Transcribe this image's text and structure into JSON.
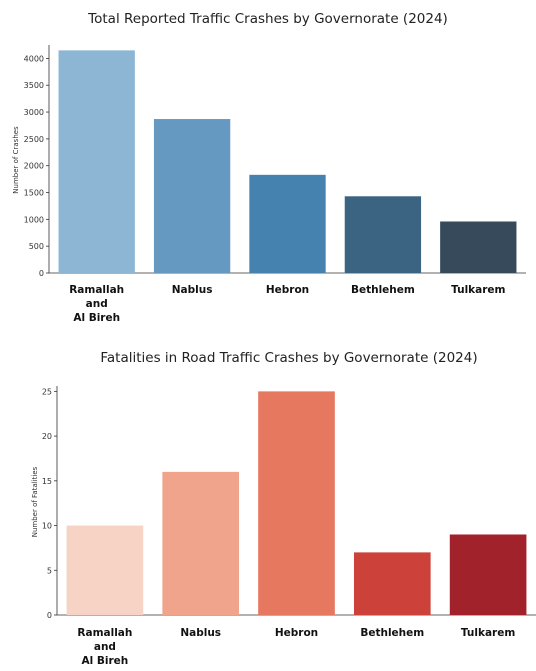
{
  "chart_data": [
    {
      "type": "bar",
      "title": "Total Reported Traffic Crashes by Governorate (2024)",
      "xlabel": "",
      "ylabel": "Number of Crashes",
      "categories": [
        [
          "Ramallah",
          "and",
          "Al Bireh"
        ],
        [
          "Nablus"
        ],
        [
          "Hebron"
        ],
        [
          "Bethlehem"
        ],
        [
          "Tulkarem"
        ]
      ],
      "values": [
        4150,
        2870,
        1830,
        1430,
        960
      ],
      "colors": [
        "#8db6d4",
        "#6699c1",
        "#4682b0",
        "#3b6482",
        "#364a5c"
      ],
      "ylim": [
        0,
        4250
      ],
      "yticks": [
        0,
        500,
        1000,
        1500,
        2000,
        2500,
        3000,
        3500,
        4000
      ],
      "grid": false
    },
    {
      "type": "bar",
      "title": "Fatalities in Road Traffic Crashes by Governorate (2024)",
      "xlabel": "",
      "ylabel": "Number of Fatalities",
      "categories": [
        [
          "Ramallah",
          "and",
          "Al Bireh"
        ],
        [
          "Nablus"
        ],
        [
          "Hebron"
        ],
        [
          "Bethlehem"
        ],
        [
          "Tulkarem"
        ]
      ],
      "values": [
        10,
        16,
        25,
        7,
        9
      ],
      "colors": [
        "#f7d3c5",
        "#efa48b",
        "#e5785f",
        "#cc423b",
        "#a1222a"
      ],
      "ylim": [
        0,
        25.6
      ],
      "yticks": [
        0,
        5,
        10,
        15,
        20,
        25
      ],
      "grid": false
    }
  ]
}
